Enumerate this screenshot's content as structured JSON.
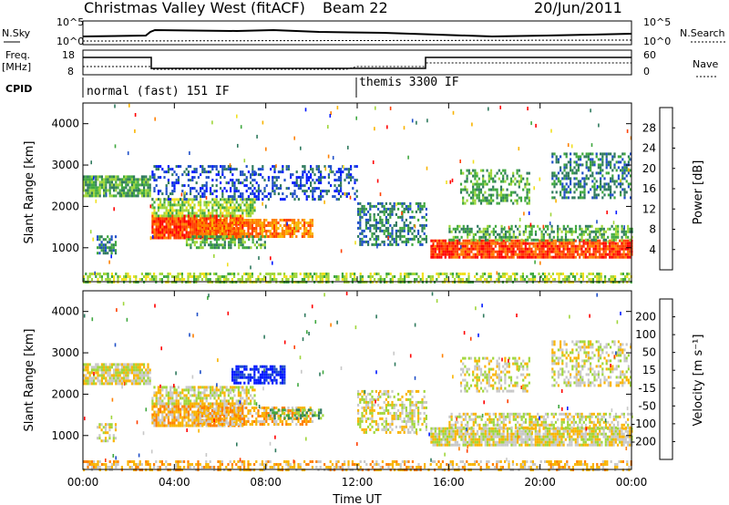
{
  "header": {
    "title": "Christmas Valley West (fitACF)",
    "beam": "Beam 22",
    "date": "20/Jun/2011"
  },
  "nsky_panel": {
    "left_label": "N.Sky",
    "left_ticks": [
      "10^5",
      "10^0"
    ],
    "right_ticks": [
      "10^5",
      "10^0"
    ],
    "right_label": "N.Search"
  },
  "freq_panel": {
    "left_label_1": "Freq.",
    "left_label_2": "[MHz]",
    "left_ticks": [
      "18",
      "8"
    ],
    "right_ticks": [
      "60",
      "0"
    ],
    "right_label": "Nave"
  },
  "cpid": {
    "label": "CPID",
    "modes": [
      {
        "name": "normal (fast) 151 IF",
        "start_hour": 0
      },
      {
        "name": "themis 3300 IF",
        "start_hour": 12
      }
    ]
  },
  "power_colorbar": {
    "label": "Power [dB]",
    "ticks": [
      "28",
      "24",
      "20",
      "16",
      "12",
      "8",
      "4"
    ],
    "colors": [
      "#0018ff",
      "#1f4fc8",
      "#2f7a5e",
      "#3fa83f",
      "#9fd63a",
      "#f0e020",
      "#f9b400",
      "#ff8000",
      "#ff4000",
      "#ff0000"
    ]
  },
  "velocity_colorbar": {
    "label": "Velocity [m s⁻¹]",
    "ticks": [
      "200",
      "100",
      "50",
      "15",
      "-15",
      "-50",
      "-100",
      "-200"
    ],
    "colors": [
      "#0018ff",
      "#1f4fc8",
      "#2f7a5e",
      "#3fa83f",
      "#9fd63a",
      "#c8c8c8",
      "#f9b400",
      "#ff8000",
      "#ff4000",
      "#ff0000"
    ]
  },
  "chart_data": [
    {
      "type": "heatmap",
      "title": "Power",
      "ylabel": "Slant Range [km]",
      "xlabel": "Time UT",
      "xlim": [
        0,
        24
      ],
      "ylim": [
        180,
        4500
      ],
      "y_ticks": [
        1000,
        2000,
        3000,
        4000
      ],
      "y_tick_labels": [
        "1000",
        "2000",
        "3000",
        "4000"
      ],
      "x_ticks": [
        0,
        4,
        8,
        12,
        16,
        20,
        24
      ],
      "x_tick_labels": [
        "00:00",
        "04:00",
        "08:00",
        "12:00",
        "16:00",
        "20:00",
        "00:00"
      ],
      "bands": [
        {
          "t0": 0.0,
          "t1": 2.9,
          "r0": 2250,
          "r1": 2750,
          "level": 3,
          "density": 0.85
        },
        {
          "t0": 0.6,
          "t1": 1.4,
          "r0": 850,
          "r1": 1300,
          "level": 2,
          "density": 0.6
        },
        {
          "t0": 3.0,
          "t1": 7.0,
          "r0": 1250,
          "r1": 1800,
          "level": 8,
          "density": 0.95
        },
        {
          "t0": 3.0,
          "t1": 7.5,
          "r0": 1800,
          "r1": 2200,
          "level": 4,
          "density": 0.7
        },
        {
          "t0": 5.0,
          "t1": 10.0,
          "r0": 1300,
          "r1": 1700,
          "level": 7,
          "density": 0.8
        },
        {
          "t0": 3.0,
          "t1": 12.0,
          "r0": 2200,
          "r1": 3000,
          "level": 1,
          "density": 0.35
        },
        {
          "t0": 4.5,
          "t1": 8.0,
          "r0": 1000,
          "r1": 1300,
          "level": 3,
          "density": 0.55
        },
        {
          "t0": 12.0,
          "t1": 15.0,
          "r0": 1100,
          "r1": 2100,
          "level": 2,
          "density": 0.5
        },
        {
          "t0": 15.2,
          "t1": 24.0,
          "r0": 750,
          "r1": 1200,
          "level": 8,
          "density": 0.9
        },
        {
          "t0": 16.0,
          "t1": 24.0,
          "r0": 1200,
          "r1": 1550,
          "level": 3,
          "density": 0.55
        },
        {
          "t0": 16.5,
          "t1": 19.5,
          "r0": 2100,
          "r1": 2900,
          "level": 3,
          "density": 0.45
        },
        {
          "t0": 20.5,
          "t1": 24.0,
          "r0": 2200,
          "r1": 3300,
          "level": 2,
          "density": 0.45
        },
        {
          "t0": 0.0,
          "t1": 24.0,
          "r0": 180,
          "r1": 400,
          "level": 4,
          "density": 0.55
        }
      ]
    },
    {
      "type": "heatmap",
      "title": "Velocity",
      "ylabel": "Slant Range [km]",
      "xlabel": "Time UT",
      "xlim": [
        0,
        24
      ],
      "ylim": [
        180,
        4500
      ],
      "y_ticks": [
        1000,
        2000,
        3000,
        4000
      ],
      "y_tick_labels": [
        "1000",
        "2000",
        "3000",
        "4000"
      ],
      "x_ticks": [
        0,
        4,
        8,
        12,
        16,
        20,
        24
      ],
      "x_tick_labels": [
        "00:00",
        "04:00",
        "08:00",
        "12:00",
        "16:00",
        "20:00",
        "00:00"
      ],
      "bands": [
        {
          "t0": 0.0,
          "t1": 2.9,
          "r0": 2250,
          "r1": 2750,
          "level": 5,
          "density": 0.85
        },
        {
          "t0": 0.6,
          "t1": 1.4,
          "r0": 850,
          "r1": 1300,
          "level": 5,
          "density": 0.5
        },
        {
          "t0": 3.0,
          "t1": 7.0,
          "r0": 1250,
          "r1": 1800,
          "level": 6,
          "density": 0.85
        },
        {
          "t0": 3.0,
          "t1": 7.5,
          "r0": 1800,
          "r1": 2200,
          "level": 5,
          "density": 0.65
        },
        {
          "t0": 6.5,
          "t1": 8.8,
          "r0": 2300,
          "r1": 2700,
          "level": 0,
          "density": 0.7
        },
        {
          "t0": 5.0,
          "t1": 10.0,
          "r0": 1300,
          "r1": 1700,
          "level": 6,
          "density": 0.6
        },
        {
          "t0": 8.0,
          "t1": 10.5,
          "r0": 1400,
          "r1": 1650,
          "level": 3,
          "density": 0.5
        },
        {
          "t0": 12.0,
          "t1": 15.0,
          "r0": 1100,
          "r1": 2100,
          "level": 5,
          "density": 0.45
        },
        {
          "t0": 15.2,
          "t1": 24.0,
          "r0": 750,
          "r1": 1200,
          "level": 5,
          "density": 0.85
        },
        {
          "t0": 16.0,
          "t1": 24.0,
          "r0": 1200,
          "r1": 1550,
          "level": 5,
          "density": 0.55
        },
        {
          "t0": 16.5,
          "t1": 19.5,
          "r0": 2100,
          "r1": 2900,
          "level": 5,
          "density": 0.45
        },
        {
          "t0": 20.5,
          "t1": 24.0,
          "r0": 2200,
          "r1": 3300,
          "level": 5,
          "density": 0.45
        },
        {
          "t0": 0.0,
          "t1": 24.0,
          "r0": 180,
          "r1": 400,
          "level": 6,
          "density": 0.45
        }
      ]
    }
  ]
}
